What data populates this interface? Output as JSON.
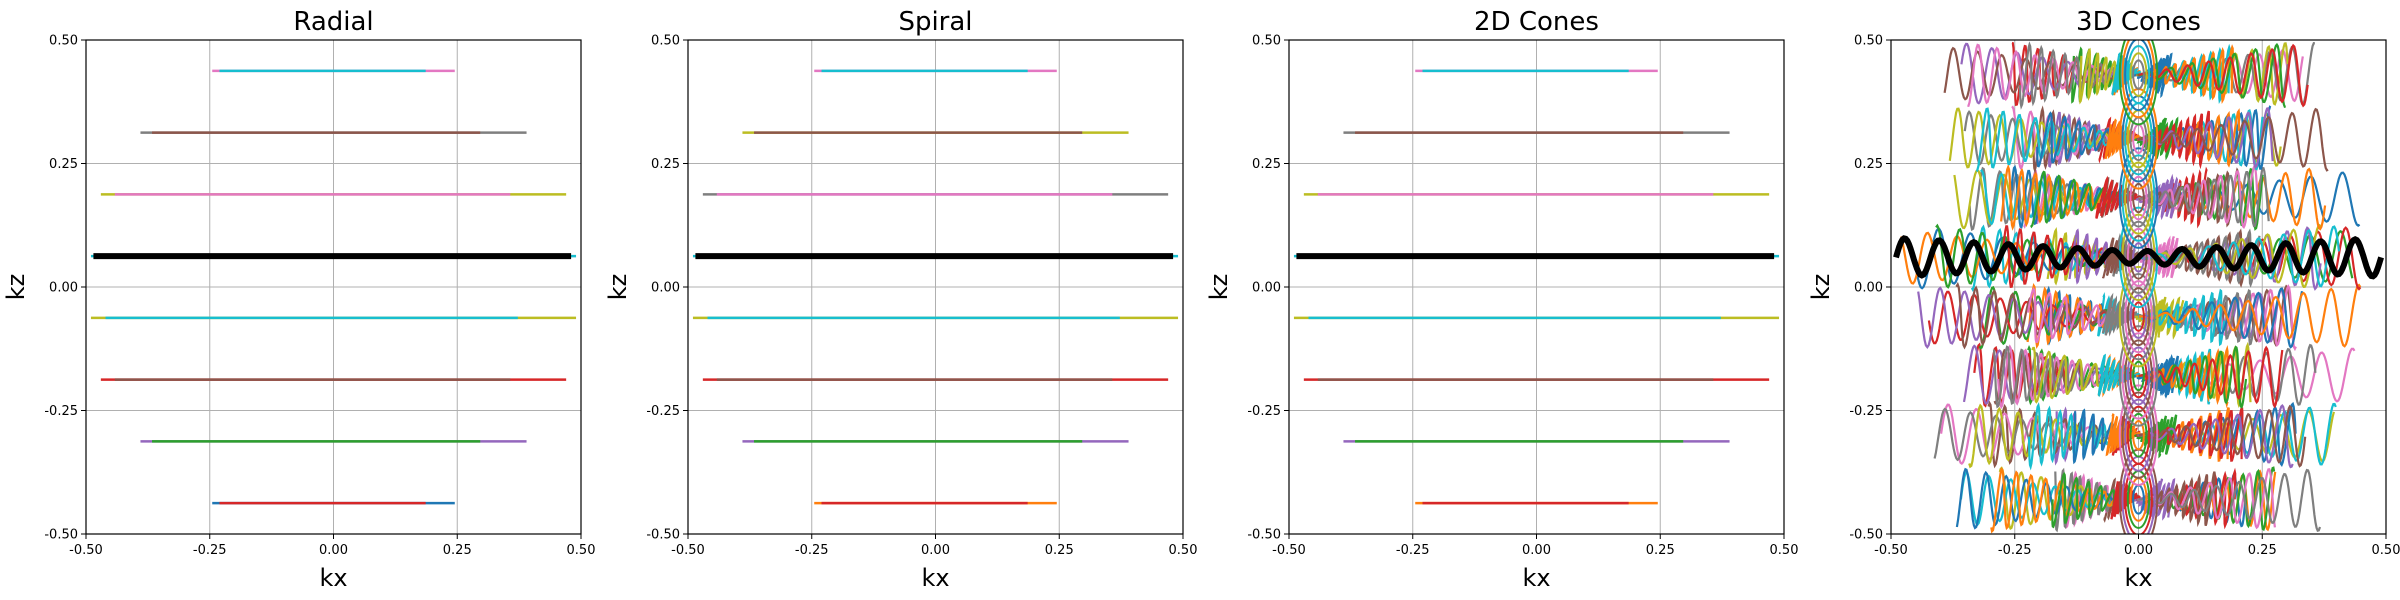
{
  "chart_data": [
    {
      "type": "line",
      "title": "Radial",
      "xlabel": "kx",
      "ylabel": "kz",
      "xlim": [
        -0.5,
        0.5
      ],
      "ylim": [
        -0.5,
        0.5
      ],
      "xticks": [
        "-0.50",
        "-0.25",
        "0.00",
        "0.25",
        "0.50"
      ],
      "yticks": [
        "-0.50",
        "-0.25",
        "0.00",
        "0.25",
        "0.50"
      ],
      "grid": true,
      "series": [
        {
          "kz": 0.4375,
          "x": [
            -0.245,
            0.245
          ],
          "outer_color": "#e377c2",
          "inner_color": "#17becf"
        },
        {
          "kz": 0.3125,
          "x": [
            -0.39,
            0.39
          ],
          "outer_color": "#7f7f7f",
          "inner_color": "#8c564b"
        },
        {
          "kz": 0.1875,
          "x": [
            -0.47,
            0.47
          ],
          "outer_color": "#bcbd22",
          "inner_color": "#e377c2"
        },
        {
          "kz": 0.0625,
          "x": [
            -0.49,
            0.49
          ],
          "outer_color": "#17becf",
          "inner_color": "#000000",
          "highlight": true
        },
        {
          "kz": -0.0625,
          "x": [
            -0.49,
            0.49
          ],
          "outer_color": "#bcbd22",
          "inner_color": "#17becf"
        },
        {
          "kz": -0.1875,
          "x": [
            -0.47,
            0.47
          ],
          "outer_color": "#d62728",
          "inner_color": "#8c564b"
        },
        {
          "kz": -0.3125,
          "x": [
            -0.39,
            0.39
          ],
          "outer_color": "#9467bd",
          "inner_color": "#2ca02c"
        },
        {
          "kz": -0.4375,
          "x": [
            -0.245,
            0.245
          ],
          "outer_color": "#1f77b4",
          "inner_color": "#d62728"
        }
      ]
    },
    {
      "type": "line",
      "title": "Spiral",
      "xlabel": "kx",
      "ylabel": "kz",
      "xlim": [
        -0.5,
        0.5
      ],
      "ylim": [
        -0.5,
        0.5
      ],
      "xticks": [
        "-0.50",
        "-0.25",
        "0.00",
        "0.25",
        "0.50"
      ],
      "yticks": [
        "-0.50",
        "-0.25",
        "0.00",
        "0.25",
        "0.50"
      ],
      "grid": true,
      "series": [
        {
          "kz": 0.4375,
          "x": [
            -0.245,
            0.245
          ],
          "outer_color": "#e377c2",
          "inner_color": "#17becf"
        },
        {
          "kz": 0.3125,
          "x": [
            -0.39,
            0.39
          ],
          "outer_color": "#bcbd22",
          "inner_color": "#8c564b"
        },
        {
          "kz": 0.1875,
          "x": [
            -0.47,
            0.47
          ],
          "outer_color": "#7f7f7f",
          "inner_color": "#e377c2"
        },
        {
          "kz": 0.0625,
          "x": [
            -0.49,
            0.49
          ],
          "outer_color": "#17becf",
          "inner_color": "#000000",
          "highlight": true
        },
        {
          "kz": -0.0625,
          "x": [
            -0.49,
            0.49
          ],
          "outer_color": "#bcbd22",
          "inner_color": "#17becf"
        },
        {
          "kz": -0.1875,
          "x": [
            -0.47,
            0.47
          ],
          "outer_color": "#d62728",
          "inner_color": "#8c564b"
        },
        {
          "kz": -0.3125,
          "x": [
            -0.39,
            0.39
          ],
          "outer_color": "#9467bd",
          "inner_color": "#2ca02c"
        },
        {
          "kz": -0.4375,
          "x": [
            -0.245,
            0.245
          ],
          "outer_color": "#ff7f0e",
          "inner_color": "#d62728"
        }
      ]
    },
    {
      "type": "line",
      "title": "2D Cones",
      "xlabel": "kx",
      "ylabel": "kz",
      "xlim": [
        -0.5,
        0.5
      ],
      "ylim": [
        -0.5,
        0.5
      ],
      "xticks": [
        "-0.50",
        "-0.25",
        "0.00",
        "0.25",
        "0.50"
      ],
      "yticks": [
        "-0.50",
        "-0.25",
        "0.00",
        "0.25",
        "0.50"
      ],
      "grid": true,
      "series": [
        {
          "kz": 0.4375,
          "x": [
            -0.245,
            0.245
          ],
          "outer_color": "#e377c2",
          "inner_color": "#17becf"
        },
        {
          "kz": 0.3125,
          "x": [
            -0.39,
            0.39
          ],
          "outer_color": "#7f7f7f",
          "inner_color": "#8c564b"
        },
        {
          "kz": 0.1875,
          "x": [
            -0.47,
            0.47
          ],
          "outer_color": "#bcbd22",
          "inner_color": "#e377c2"
        },
        {
          "kz": 0.0625,
          "x": [
            -0.49,
            0.49
          ],
          "outer_color": "#17becf",
          "inner_color": "#000000",
          "highlight": true
        },
        {
          "kz": -0.0625,
          "x": [
            -0.49,
            0.49
          ],
          "outer_color": "#bcbd22",
          "inner_color": "#17becf"
        },
        {
          "kz": -0.1875,
          "x": [
            -0.47,
            0.47
          ],
          "outer_color": "#d62728",
          "inner_color": "#8c564b"
        },
        {
          "kz": -0.3125,
          "x": [
            -0.39,
            0.39
          ],
          "outer_color": "#9467bd",
          "inner_color": "#2ca02c"
        },
        {
          "kz": -0.4375,
          "x": [
            -0.245,
            0.245
          ],
          "outer_color": "#ff7f0e",
          "inner_color": "#d62728"
        }
      ]
    },
    {
      "type": "line",
      "title": "3D Cones",
      "xlabel": "kx",
      "ylabel": "kz",
      "xlim": [
        -0.5,
        0.5
      ],
      "ylim": [
        -0.5,
        0.5
      ],
      "xticks": [
        "-0.50",
        "-0.25",
        "0.00",
        "0.25",
        "0.50"
      ],
      "yticks": [
        "-0.50",
        "-0.25",
        "0.00",
        "0.25",
        "0.50"
      ],
      "grid": true,
      "palette": [
        "#1f77b4",
        "#ff7f0e",
        "#2ca02c",
        "#d62728",
        "#9467bd",
        "#8c564b",
        "#e377c2",
        "#7f7f7f",
        "#bcbd22",
        "#17becf"
      ],
      "highlight_color": "#000000",
      "highlight": {
        "x_range": [
          -0.49,
          0.49
        ],
        "kz_center": 0.06,
        "amplitude": 0.04
      },
      "cone_rows_kz": [
        -0.43,
        -0.3,
        -0.18,
        -0.06,
        0.06,
        0.18,
        0.3,
        0.43
      ]
    }
  ]
}
